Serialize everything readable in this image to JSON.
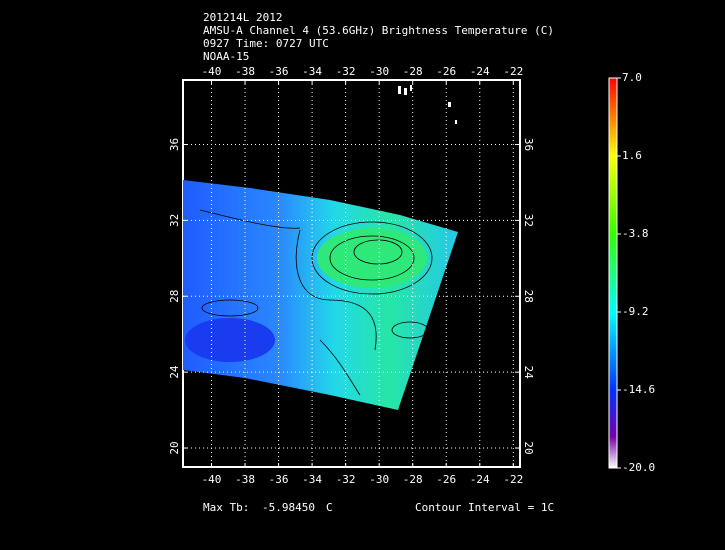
{
  "header": {
    "lines": [
      "201214L 2012",
      "AMSU-A Channel 4 (53.6GHz) Brightness Temperature (C)",
      "0927 Time: 0727 UTC",
      "NOAA-15"
    ]
  },
  "map": {
    "xlim": [
      -41.7,
      -21.6
    ],
    "ylim": [
      19,
      39.4
    ],
    "xticks": [
      -40,
      -38,
      -36,
      -34,
      -32,
      -30,
      -28,
      -26,
      -24,
      -22
    ],
    "yticks": [
      20,
      24,
      28,
      32,
      36
    ],
    "grid": true
  },
  "colorbar": {
    "clim": [
      -20,
      7
    ],
    "ticks": [
      {
        "value": 7,
        "label": "7.0"
      },
      1.6,
      -3.8,
      -9.2,
      -14.6,
      {
        "value": -20,
        "label": "-20.0"
      }
    ]
  },
  "footer": {
    "max_label": "Max Tb:",
    "max_value": "-5.98450",
    "max_unit": "C",
    "contour": "Contour Interval = 1C"
  }
}
